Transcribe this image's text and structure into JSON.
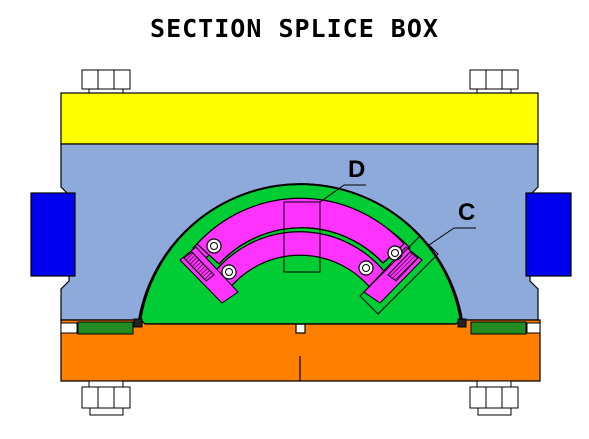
{
  "title": "SECTION SPLICE BOX",
  "callouts": {
    "detail_d": "D",
    "detail_c": "C"
  },
  "colors": {
    "top_plate": "#ffff00",
    "body": "#8eaadb",
    "end_blocks": "#0000ee",
    "dome": "#00cc33",
    "segments": "#ff33ff",
    "base_plate": "#ff8000",
    "gaskets": "#228b22",
    "bolts": "#ffffff"
  },
  "icons": {
    "screw": "circled-cross-screw-icon",
    "bolt": "hex-bolt-icon"
  }
}
